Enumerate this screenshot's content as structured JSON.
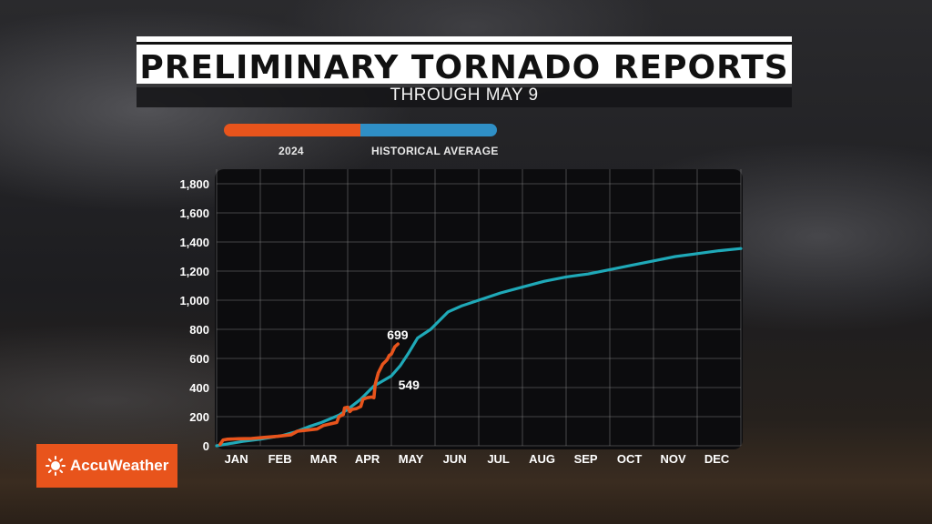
{
  "header": {
    "title": "PRELIMINARY TORNADO REPORTS",
    "subtitle": "THROUGH MAY 9"
  },
  "legend": {
    "series_2024": "2024",
    "series_avg": "HISTORICAL AVERAGE"
  },
  "logo": {
    "text": "AccuWeather"
  },
  "colors": {
    "series_2024": "#e8541c",
    "series_avg": "#1fa9b8",
    "legend_avg": "#2f8fc6",
    "plot_bg": "#0c0c0e",
    "grid": "#8a8a8a"
  },
  "chart_data": {
    "type": "line",
    "title": "PRELIMINARY TORNADO REPORTS",
    "subtitle": "THROUGH MAY 9",
    "xlabel": "",
    "ylabel": "",
    "x_unit": "month",
    "xlim": [
      0,
      12
    ],
    "ylim": [
      0,
      1900
    ],
    "y_ticks": [
      0,
      200,
      400,
      600,
      800,
      1000,
      1200,
      1400,
      1600,
      1800
    ],
    "y_tick_labels": [
      "0",
      "200",
      "400",
      "600",
      "800",
      "1,000",
      "1,200",
      "1,400",
      "1,600",
      "1,800"
    ],
    "x_tick_labels": [
      "JAN",
      "FEB",
      "MAR",
      "APR",
      "MAY",
      "JUN",
      "JUL",
      "AUG",
      "SEP",
      "OCT",
      "NOV",
      "DEC"
    ],
    "grid": true,
    "legend_position": "top",
    "series": [
      {
        "name": "2024",
        "points": [
          [
            0.08,
            10
          ],
          [
            0.15,
            40
          ],
          [
            0.25,
            45
          ],
          [
            0.5,
            48
          ],
          [
            0.8,
            50
          ],
          [
            1.0,
            55
          ],
          [
            1.4,
            65
          ],
          [
            1.7,
            75
          ],
          [
            1.85,
            100
          ],
          [
            2.0,
            105
          ],
          [
            2.3,
            115
          ],
          [
            2.45,
            140
          ],
          [
            2.6,
            150
          ],
          [
            2.75,
            160
          ],
          [
            2.8,
            200
          ],
          [
            2.9,
            215
          ],
          [
            2.93,
            260
          ],
          [
            3.0,
            265
          ],
          [
            3.05,
            235
          ],
          [
            3.1,
            250
          ],
          [
            3.2,
            255
          ],
          [
            3.3,
            270
          ],
          [
            3.35,
            320
          ],
          [
            3.45,
            330
          ],
          [
            3.55,
            335
          ],
          [
            3.6,
            330
          ],
          [
            3.63,
            420
          ],
          [
            3.7,
            500
          ],
          [
            3.8,
            560
          ],
          [
            3.9,
            590
          ],
          [
            3.95,
            620
          ],
          [
            4.0,
            630
          ],
          [
            4.08,
            680
          ],
          [
            4.15,
            699
          ]
        ],
        "end_label": "699"
      },
      {
        "name": "HISTORICAL AVERAGE",
        "points": [
          [
            0.0,
            0
          ],
          [
            0.3,
            15
          ],
          [
            0.6,
            30
          ],
          [
            1.0,
            45
          ],
          [
            1.5,
            70
          ],
          [
            1.8,
            95
          ],
          [
            2.1,
            130
          ],
          [
            2.4,
            160
          ],
          [
            2.8,
            210
          ],
          [
            3.0,
            250
          ],
          [
            3.3,
            320
          ],
          [
            3.6,
            410
          ],
          [
            4.0,
            480
          ],
          [
            4.2,
            549
          ],
          [
            4.4,
            640
          ],
          [
            4.6,
            740
          ],
          [
            4.9,
            800
          ],
          [
            5.1,
            860
          ],
          [
            5.3,
            920
          ],
          [
            5.6,
            960
          ],
          [
            6.0,
            1000
          ],
          [
            6.5,
            1050
          ],
          [
            7.0,
            1090
          ],
          [
            7.5,
            1130
          ],
          [
            8.0,
            1160
          ],
          [
            8.5,
            1180
          ],
          [
            9.0,
            1210
          ],
          [
            9.5,
            1240
          ],
          [
            10.0,
            1270
          ],
          [
            10.5,
            1300
          ],
          [
            11.0,
            1320
          ],
          [
            11.5,
            1340
          ],
          [
            12.0,
            1355
          ]
        ],
        "point_label": "549"
      }
    ]
  }
}
